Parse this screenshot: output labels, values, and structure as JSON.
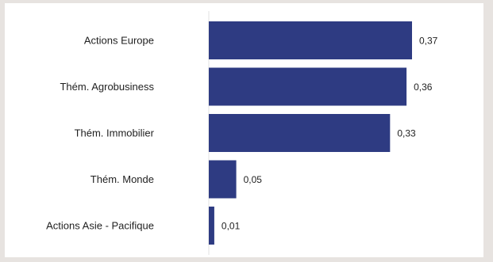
{
  "chart_data": {
    "type": "bar",
    "orientation": "horizontal",
    "categories": [
      "Actions Europe",
      "Thém. Agrobusiness",
      "Thém. Immobilier",
      "Thém. Monde",
      "Actions Asie - Pacifique"
    ],
    "values": [
      0.37,
      0.36,
      0.33,
      0.05,
      0.01
    ],
    "value_labels": [
      "0,37",
      "0,36",
      "0,33",
      "0,05",
      "0,01"
    ],
    "xlim": [
      0,
      0.37
    ],
    "grid": false,
    "legend": "none",
    "bar_color": "#2e3b82"
  }
}
